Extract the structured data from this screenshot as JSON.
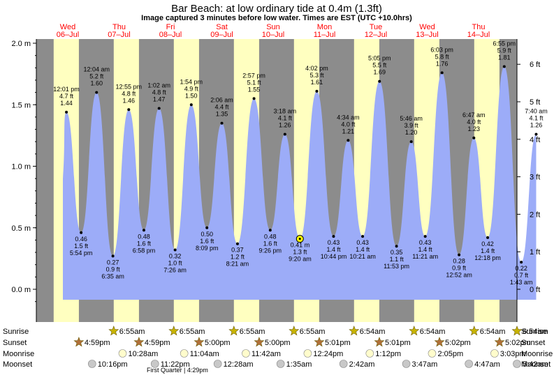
{
  "title": "Bar Beach: at low  ordinary tide at 0.4m (1.3ft)",
  "subtitle": "Image captured 3 minutes before low water. Times are EST (UTC +10.0hrs)",
  "days": [
    {
      "dow": "Wed",
      "date": "06–Jul"
    },
    {
      "dow": "Thu",
      "date": "07–Jul"
    },
    {
      "dow": "Fri",
      "date": "08–Jul"
    },
    {
      "dow": "Sat",
      "date": "09–Jul"
    },
    {
      "dow": "Sun",
      "date": "10–Jul"
    },
    {
      "dow": "Mon",
      "date": "11–Jul"
    },
    {
      "dow": "Tue",
      "date": "12–Jul"
    },
    {
      "dow": "Wed",
      "date": "13–Jul"
    },
    {
      "dow": "Thu",
      "date": "14–Jul"
    }
  ],
  "colors": {
    "day": "#ffffc0",
    "night": "#8c8c8c",
    "water": "#9cacf8",
    "marker": "#ffff00"
  },
  "chart_data": {
    "type": "area",
    "yunits_left": "m",
    "yunits_right": "ft",
    "ylim_m": [
      -0.1,
      2.05
    ],
    "yticks_left": [
      "0.0 m",
      "0.5 m",
      "1.0 m",
      "1.5 m",
      "2.0 m"
    ],
    "yticks_left_values": [
      0.0,
      0.5,
      1.0,
      1.5,
      2.0
    ],
    "yticks_right": [
      "0 ft",
      "1 ft",
      "2 ft",
      "3 ft",
      "4 ft",
      "5 ft",
      "6 ft"
    ],
    "yticks_right_values_ft": [
      0,
      1,
      2,
      3,
      4,
      5,
      6
    ],
    "x_start": "06-Jul 00:00",
    "x_days": 8.0,
    "points": [
      {
        "day": 0,
        "time": "12:01 pm",
        "m": "1.44",
        "ft": "4.7 ft",
        "mv": 1.44,
        "high": true
      },
      {
        "day": 0,
        "time": "5:54 pm",
        "m": "0.46",
        "ft": "1.5 ft",
        "mv": 0.46,
        "high": false
      },
      {
        "day": 1,
        "time": "12:04 am",
        "m": "1.60",
        "ft": "5.2 ft",
        "mv": 1.6,
        "high": true
      },
      {
        "day": 1,
        "time": "6:35 am",
        "m": "0.27",
        "ft": "0.9 ft",
        "mv": 0.27,
        "high": false
      },
      {
        "day": 1,
        "time": "12:55 pm",
        "m": "1.46",
        "ft": "4.8 ft",
        "mv": 1.46,
        "high": true
      },
      {
        "day": 1,
        "time": "6:58 pm",
        "m": "0.48",
        "ft": "1.6 ft",
        "mv": 0.48,
        "high": false
      },
      {
        "day": 2,
        "time": "1:02 am",
        "m": "1.47",
        "ft": "4.8 ft",
        "mv": 1.47,
        "high": true
      },
      {
        "day": 2,
        "time": "7:26 am",
        "m": "0.32",
        "ft": "1.0 ft",
        "mv": 0.32,
        "high": false
      },
      {
        "day": 2,
        "time": "1:54 pm",
        "m": "1.50",
        "ft": "4.9 ft",
        "mv": 1.5,
        "high": true
      },
      {
        "day": 2,
        "time": "8:09 pm",
        "m": "0.50",
        "ft": "1.6 ft",
        "mv": 0.5,
        "high": false
      },
      {
        "day": 3,
        "time": "2:06 am",
        "m": "1.35",
        "ft": "4.4 ft",
        "mv": 1.35,
        "high": true
      },
      {
        "day": 3,
        "time": "8:21 am",
        "m": "0.37",
        "ft": "1.2 ft",
        "mv": 0.37,
        "high": false
      },
      {
        "day": 3,
        "time": "2:57 pm",
        "m": "1.55",
        "ft": "5.1 ft",
        "mv": 1.55,
        "high": true
      },
      {
        "day": 3,
        "time": "9:26 pm",
        "m": "0.48",
        "ft": "1.6 ft",
        "mv": 0.48,
        "high": false
      },
      {
        "day": 4,
        "time": "3:18 am",
        "m": "1.26",
        "ft": "4.1 ft",
        "mv": 1.26,
        "high": true
      },
      {
        "day": 4,
        "time": "9:20 am",
        "m": "0.41 m",
        "ft": "1.3 ft",
        "mv": 0.41,
        "high": false
      },
      {
        "day": 4,
        "time": "4:02 pm",
        "m": "1.61",
        "ft": "5.3 ft",
        "mv": 1.61,
        "high": true
      },
      {
        "day": 4,
        "time": "10:44 pm",
        "m": "0.43",
        "ft": "1.4 ft",
        "mv": 0.43,
        "high": false
      },
      {
        "day": 5,
        "time": "4:34 am",
        "m": "1.21",
        "ft": "4.0 ft",
        "mv": 1.21,
        "high": true
      },
      {
        "day": 5,
        "time": "10:21 am",
        "m": "0.43",
        "ft": "1.4 ft",
        "mv": 0.43,
        "high": false
      },
      {
        "day": 5,
        "time": "5:05 pm",
        "m": "1.69",
        "ft": "5.5 ft",
        "mv": 1.69,
        "high": true
      },
      {
        "day": 5,
        "time": "11:53 pm",
        "m": "0.35",
        "ft": "1.1 ft",
        "mv": 0.35,
        "high": false
      },
      {
        "day": 6,
        "time": "5:46 am",
        "m": "1.20",
        "ft": "3.9 ft",
        "mv": 1.2,
        "high": true
      },
      {
        "day": 6,
        "time": "11:21 am",
        "m": "0.43",
        "ft": "1.4 ft",
        "mv": 0.43,
        "high": false
      },
      {
        "day": 6,
        "time": "6:03 pm",
        "m": "1.76",
        "ft": "5.8 ft",
        "mv": 1.76,
        "high": true
      },
      {
        "day": 7,
        "time": "12:52 am",
        "m": "0.28",
        "ft": "0.9 ft",
        "mv": 0.28,
        "high": false
      },
      {
        "day": 7,
        "time": "6:47 am",
        "m": "1.23",
        "ft": "4.0 ft",
        "mv": 1.23,
        "high": true
      },
      {
        "day": 7,
        "time": "12:18 pm",
        "m": "0.42",
        "ft": "1.4 ft",
        "mv": 0.42,
        "high": false
      },
      {
        "day": 7,
        "time": "6:55 pm",
        "m": "1.81",
        "ft": "5.9 ft",
        "mv": 1.81,
        "high": true
      },
      {
        "day": 8,
        "time": "1:43 am",
        "m": "0.22",
        "ft": "0.7 ft",
        "mv": 0.22,
        "high": false
      },
      {
        "day": 8,
        "time": "7:40 am",
        "m": "1.26",
        "ft": "4.1 ft",
        "mv": 1.26,
        "high": true
      }
    ],
    "current_marker": {
      "day": 4,
      "time": "9:17 am",
      "mv": 0.41
    }
  },
  "rows": {
    "labels": [
      "Sunrise",
      "Sunset",
      "Moonrise",
      "Moonset"
    ],
    "sunrise": [
      {
        "day": 1,
        "time": "6:55am"
      },
      {
        "day": 2,
        "time": "6:55am"
      },
      {
        "day": 3,
        "time": "6:55am"
      },
      {
        "day": 4,
        "time": "6:55am"
      },
      {
        "day": 5,
        "time": "6:54am"
      },
      {
        "day": 6,
        "time": "6:54am"
      },
      {
        "day": 7,
        "time": "6:54am"
      },
      {
        "day": 8,
        "time": "6:54am"
      }
    ],
    "sunset": [
      {
        "day": 0,
        "time": "4:59pm"
      },
      {
        "day": 1,
        "time": "4:59pm"
      },
      {
        "day": 2,
        "time": "5:00pm"
      },
      {
        "day": 3,
        "time": "5:00pm"
      },
      {
        "day": 4,
        "time": "5:01pm"
      },
      {
        "day": 5,
        "time": "5:01pm"
      },
      {
        "day": 6,
        "time": "5:02pm"
      },
      {
        "day": 7,
        "time": "5:02pm"
      }
    ],
    "moonrise": [
      {
        "day": 1,
        "time": "10:28am"
      },
      {
        "day": 2,
        "time": "11:04am"
      },
      {
        "day": 3,
        "time": "11:42am"
      },
      {
        "day": 4,
        "time": "12:24pm"
      },
      {
        "day": 5,
        "time": "1:12pm"
      },
      {
        "day": 6,
        "time": "2:05pm"
      },
      {
        "day": 7,
        "time": "3:03pm"
      }
    ],
    "moonset": [
      {
        "day": 0,
        "time": "10:16pm"
      },
      {
        "day": 1,
        "time": "11:22pm"
      },
      {
        "day": 3,
        "time": "12:28am"
      },
      {
        "day": 4,
        "time": "1:35am"
      },
      {
        "day": 5,
        "time": "2:42am"
      },
      {
        "day": 6,
        "time": "3:47am"
      },
      {
        "day": 7,
        "time": "4:47am"
      },
      {
        "day": 8,
        "time": "5:42am"
      }
    ],
    "moon_phase_note": "First Quarter | 4:29pm"
  }
}
